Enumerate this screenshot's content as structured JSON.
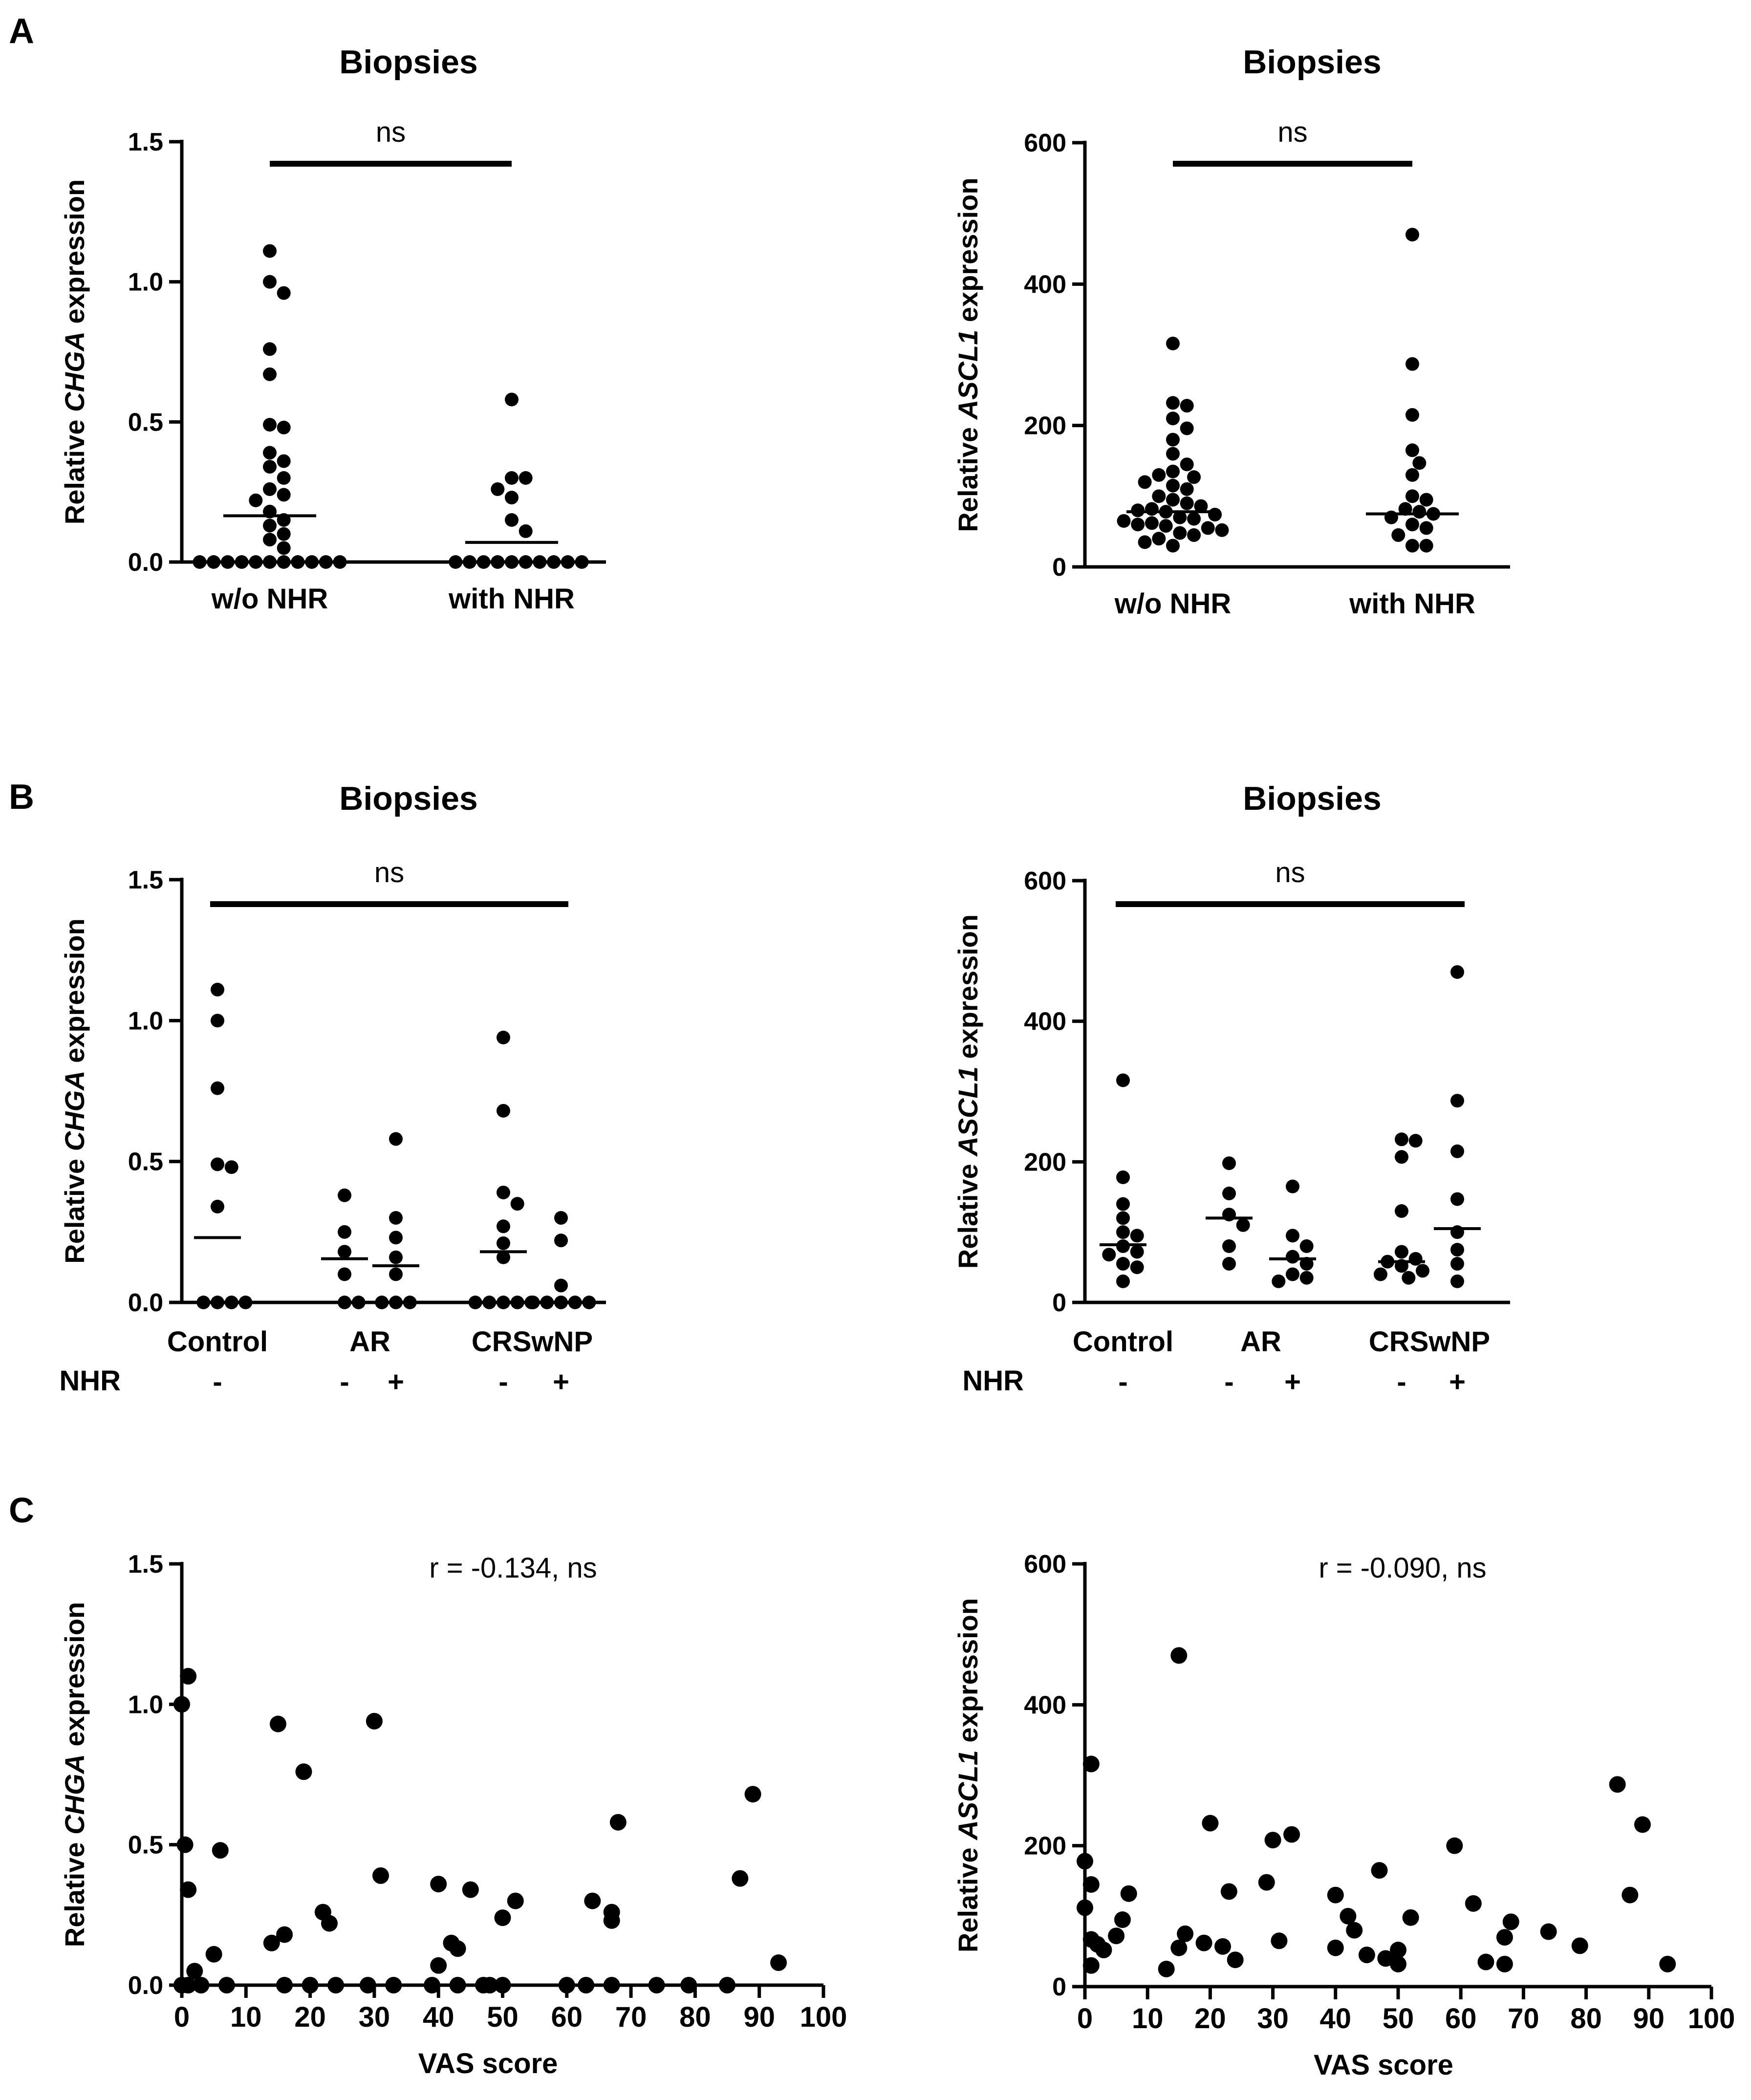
{
  "chart_data": [
    {
      "id": "A-left",
      "panel": "A",
      "type": "scatter",
      "title": "Biopsies",
      "ylabel_pre": "Relative ",
      "ylabel_gene": "CHGA",
      "ylabel_post": " expression",
      "ylim": [
        0,
        1.5
      ],
      "yticks": [
        "0.0",
        "0.5",
        "1.0",
        "1.5"
      ],
      "yticks_values": [
        0,
        0.5,
        1.0,
        1.5
      ],
      "categories": [
        "w/o NHR",
        "with NHR"
      ],
      "groups": [
        {
          "name": "w/o NHR",
          "median": 0.165,
          "values": [
            1.11,
            1.0,
            0.96,
            0.76,
            0.67,
            0.49,
            0.48,
            0.39,
            0.36,
            0.34,
            0.3,
            0.26,
            0.24,
            0.22,
            0.18,
            0.15,
            0.13,
            0.1,
            0.08,
            0.05,
            0.0,
            0.0,
            0.0,
            0.0,
            0.0,
            0.0,
            0.0,
            0.0,
            0.0,
            0.0,
            0.0,
            0.0,
            0.0,
            0.0,
            0.0
          ]
        },
        {
          "name": "with NHR",
          "median": 0.07,
          "values": [
            0.58,
            0.3,
            0.3,
            0.26,
            0.23,
            0.15,
            0.11,
            0.0,
            0.0,
            0.0,
            0.0,
            0.0,
            0.0,
            0.0,
            0.0,
            0.0,
            0.0
          ]
        }
      ],
      "significance": {
        "label": "ns",
        "from": 0,
        "to": 1
      }
    },
    {
      "id": "A-right",
      "panel": "A",
      "type": "scatter",
      "title": "Biopsies",
      "ylabel_pre": "Relative ",
      "ylabel_gene": "ASCL1",
      "ylabel_post": " expression",
      "ylim": [
        0,
        600
      ],
      "yticks": [
        "0",
        "200",
        "400",
        "600"
      ],
      "yticks_values": [
        0,
        200,
        400,
        600
      ],
      "categories": [
        "w/o NHR",
        "with NHR"
      ],
      "groups": [
        {
          "name": "w/o NHR",
          "median": 78,
          "values": [
            316,
            232,
            228,
            210,
            196,
            180,
            160,
            145,
            135,
            130,
            127,
            120,
            115,
            110,
            100,
            95,
            90,
            86,
            82,
            80,
            78,
            74,
            70,
            68,
            65,
            62,
            60,
            58,
            55,
            52,
            48,
            45,
            40,
            35,
            30
          ]
        },
        {
          "name": "with NHR",
          "median": 75,
          "values": [
            470,
            287,
            215,
            165,
            147,
            130,
            100,
            95,
            82,
            78,
            75,
            70,
            60,
            55,
            45,
            30,
            30
          ]
        }
      ],
      "significance": {
        "label": "ns",
        "from": 0,
        "to": 1
      }
    },
    {
      "id": "B-left",
      "panel": "B",
      "type": "scatter",
      "title": "Biopsies",
      "ylabel_pre": "Relative ",
      "ylabel_gene": "CHGA",
      "ylabel_post": " expression",
      "ylim": [
        0,
        1.5
      ],
      "yticks": [
        "0.0",
        "0.5",
        "1.0",
        "1.5"
      ],
      "yticks_values": [
        0,
        0.5,
        1.0,
        1.5
      ],
      "categories": [
        "Control",
        "AR",
        "CRSwNP"
      ],
      "nhr_label": "NHR",
      "groups": [
        {
          "name": "Control",
          "nhr": "-",
          "median": 0.23,
          "values": [
            1.11,
            1.0,
            0.76,
            0.49,
            0.48,
            0.34,
            0.0,
            0.0,
            0.0,
            0.0
          ]
        },
        {
          "name": "AR",
          "nhr": "-",
          "median": 0.155,
          "values": [
            0.38,
            0.25,
            0.18,
            0.1,
            0.0,
            0.0
          ]
        },
        {
          "name": "AR",
          "nhr": "+",
          "median": 0.13,
          "values": [
            0.58,
            0.3,
            0.23,
            0.16,
            0.1,
            0.0,
            0.0,
            0.0
          ]
        },
        {
          "name": "CRSwNP",
          "nhr": "-",
          "median": 0.18,
          "values": [
            0.94,
            0.68,
            0.39,
            0.35,
            0.27,
            0.21,
            0.16,
            0.0,
            0.0,
            0.0,
            0.0,
            0.0
          ]
        },
        {
          "name": "CRSwNP",
          "nhr": "+",
          "median": 0.0,
          "values": [
            0.3,
            0.22,
            0.06,
            0.0,
            0.0,
            0.0,
            0.0,
            0.0
          ]
        }
      ],
      "significance": {
        "label": "ns",
        "from": 0,
        "to": 4
      }
    },
    {
      "id": "B-right",
      "panel": "B",
      "type": "scatter",
      "title": "Biopsies",
      "ylabel_pre": "Relative ",
      "ylabel_gene": "ASCL1",
      "ylabel_post": " expression",
      "ylim": [
        0,
        600
      ],
      "yticks": [
        "0",
        "200",
        "400",
        "600"
      ],
      "yticks_values": [
        0,
        200,
        400,
        600
      ],
      "categories": [
        "Control",
        "AR",
        "CRSwNP"
      ],
      "nhr_label": "NHR",
      "groups": [
        {
          "name": "Control",
          "nhr": "-",
          "median": 82,
          "values": [
            316,
            178,
            140,
            120,
            100,
            95,
            80,
            72,
            68,
            55,
            50,
            30
          ]
        },
        {
          "name": "AR",
          "nhr": "-",
          "median": 120,
          "values": [
            198,
            155,
            125,
            110,
            80,
            55
          ]
        },
        {
          "name": "AR",
          "nhr": "+",
          "median": 62,
          "values": [
            165,
            95,
            80,
            65,
            55,
            40,
            35,
            30
          ]
        },
        {
          "name": "CRSwNP",
          "nhr": "-",
          "median": 58,
          "values": [
            232,
            230,
            207,
            130,
            72,
            62,
            58,
            52,
            45,
            40,
            35
          ]
        },
        {
          "name": "CRSwNP",
          "nhr": "+",
          "median": 105,
          "values": [
            470,
            287,
            215,
            147,
            100,
            75,
            55,
            30
          ]
        }
      ],
      "significance": {
        "label": "ns",
        "from": 0,
        "to": 4
      }
    },
    {
      "id": "C-left",
      "panel": "C",
      "type": "scatter",
      "xlabel": "VAS score",
      "ylabel_pre": "Relative ",
      "ylabel_gene": "CHGA",
      "ylabel_post": " expression",
      "annotation": "r = -0.134, ns",
      "xlim": [
        0,
        100
      ],
      "xticks": [
        "0",
        "10",
        "20",
        "30",
        "40",
        "50",
        "60",
        "70",
        "80",
        "90",
        "100"
      ],
      "ylim": [
        0,
        1.5
      ],
      "yticks": [
        "0.0",
        "0.5",
        "1.0",
        "1.5"
      ],
      "yticks_values": [
        0,
        0.5,
        1.0,
        1.5
      ],
      "x": [
        0,
        1,
        0.5,
        1,
        2,
        5,
        6,
        15,
        16,
        14,
        19,
        22,
        23,
        30,
        31,
        40,
        40,
        42,
        43,
        45,
        50,
        52,
        64,
        67,
        67,
        68,
        87,
        89,
        93,
        0,
        1,
        3,
        7,
        16,
        20,
        24,
        29,
        33,
        39,
        43,
        47,
        48,
        50,
        60,
        63,
        67,
        74,
        79,
        85
      ],
      "y": [
        1.0,
        1.1,
        0.5,
        0.34,
        0.05,
        0.11,
        0.48,
        0.93,
        0.18,
        0.15,
        0.76,
        0.26,
        0.22,
        0.94,
        0.39,
        0.36,
        0.07,
        0.15,
        0.13,
        0.34,
        0.24,
        0.3,
        0.3,
        0.26,
        0.23,
        0.58,
        0.38,
        0.68,
        0.08,
        0.0,
        0.0,
        0.0,
        0.0,
        0.0,
        0.0,
        0.0,
        0.0,
        0.0,
        0.0,
        0.0,
        0.0,
        0.0,
        0.0,
        0.0,
        0.0,
        0.0,
        0.0,
        0.0,
        0.0
      ]
    },
    {
      "id": "C-right",
      "panel": "C",
      "type": "scatter",
      "xlabel": "VAS score",
      "ylabel_pre": "Relative ",
      "ylabel_gene": "ASCL1",
      "ylabel_post": " expression",
      "annotation": "r = -0.090, ns",
      "xlim": [
        0,
        100
      ],
      "xticks": [
        "0",
        "10",
        "20",
        "30",
        "40",
        "50",
        "60",
        "70",
        "80",
        "90",
        "100"
      ],
      "ylim": [
        0,
        600
      ],
      "yticks": [
        "0",
        "200",
        "400",
        "600"
      ],
      "yticks_values": [
        0,
        200,
        400,
        600
      ],
      "x": [
        0,
        0,
        1,
        1,
        1,
        1,
        2,
        3,
        5,
        6,
        7,
        13,
        15,
        15,
        16,
        19,
        20,
        22,
        23,
        24,
        29,
        30,
        31,
        33,
        40,
        40,
        42,
        43,
        45,
        47,
        48,
        50,
        50,
        52,
        59,
        62,
        64,
        67,
        67,
        68,
        74,
        79,
        85,
        87,
        89,
        93
      ],
      "y": [
        178,
        112,
        316,
        145,
        67,
        30,
        60,
        52,
        72,
        95,
        132,
        25,
        470,
        55,
        75,
        62,
        232,
        57,
        135,
        38,
        148,
        208,
        65,
        216,
        130,
        55,
        100,
        80,
        45,
        165,
        40,
        52,
        32,
        98,
        200,
        118,
        35,
        70,
        32,
        92,
        78,
        58,
        287,
        130,
        230,
        32
      ]
    }
  ]
}
